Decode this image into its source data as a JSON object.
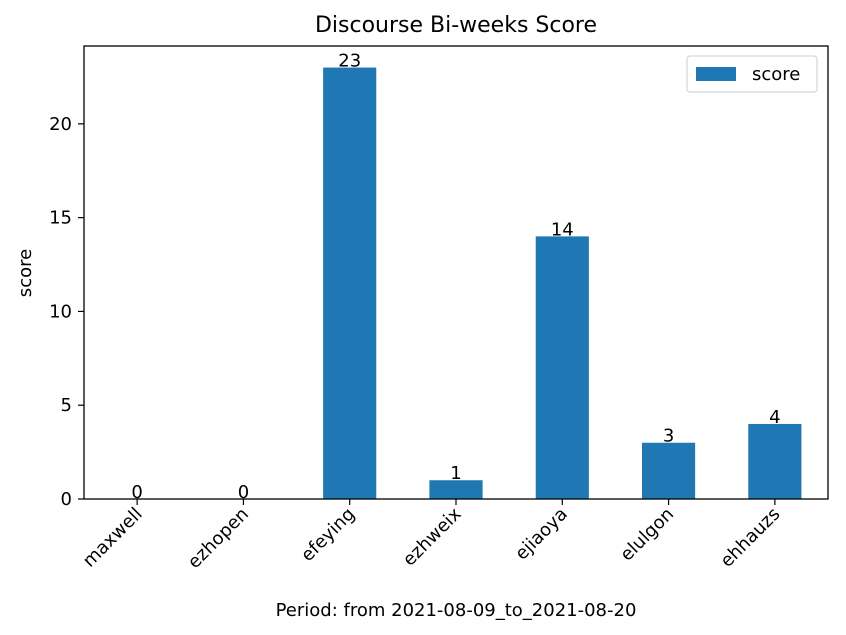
{
  "chart_data": {
    "type": "bar",
    "title": "Discourse Bi-weeks Score",
    "xlabel": "Period: from 2021-08-09_to_2021-08-20",
    "ylabel": "score",
    "categories": [
      "maxwell",
      "ezhopen",
      "efeying",
      "ezhweix",
      "ejiaoya",
      "elulgon",
      "ehhauzs"
    ],
    "series": [
      {
        "name": "score",
        "values": [
          0,
          0,
          23,
          1,
          14,
          3,
          4
        ],
        "color": "#1f77b4"
      }
    ],
    "ylim": [
      0,
      24.15
    ],
    "yticks": [
      0,
      5,
      10,
      15,
      20
    ],
    "grid": false,
    "legend_position": "top-right",
    "show_data_labels": true
  }
}
